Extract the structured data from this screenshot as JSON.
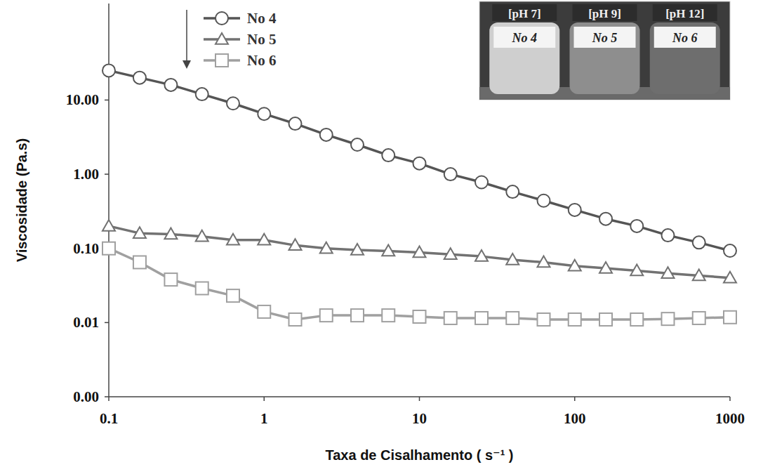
{
  "chart_data": {
    "type": "line",
    "x_label": "Taxa de Cisalhamento ( s⁻¹ )",
    "y_label": "Viscosidade (Pa.s)",
    "log": true,
    "grid": false,
    "legend": "top",
    "xlim": [
      0.1,
      1000
    ],
    "xticks": [
      0.1,
      1,
      10,
      100,
      1000
    ],
    "ylim": [
      0.001,
      200
    ],
    "yticks": [
      {
        "value": 0.001,
        "label": "0.00"
      },
      {
        "value": 0.01,
        "label": "0.01"
      },
      {
        "value": 0.1,
        "label": "0.10"
      },
      {
        "value": 1,
        "label": "1.00"
      },
      {
        "value": 10,
        "label": "10.00"
      }
    ],
    "x": [
      0.1,
      0.158,
      0.251,
      0.398,
      0.631,
      1,
      1.585,
      2.512,
      3.981,
      6.31,
      10,
      15.85,
      25.12,
      39.81,
      63.1,
      100,
      158.5,
      251.2,
      398.1,
      631,
      1000
    ],
    "series": [
      {
        "name": "No 4",
        "color": "#555555",
        "marker": "circle",
        "values": [
          25,
          20,
          16,
          12,
          9,
          6.5,
          4.8,
          3.4,
          2.5,
          1.8,
          1.4,
          1.0,
          0.78,
          0.58,
          0.44,
          0.33,
          0.25,
          0.2,
          0.15,
          0.12,
          0.093
        ]
      },
      {
        "name": "No 5",
        "color": "#727272",
        "marker": "triangle",
        "values": [
          0.2,
          0.16,
          0.155,
          0.145,
          0.13,
          0.13,
          0.11,
          0.1,
          0.095,
          0.092,
          0.088,
          0.083,
          0.078,
          0.07,
          0.065,
          0.058,
          0.054,
          0.05,
          0.046,
          0.043,
          0.04
        ]
      },
      {
        "name": "No 6",
        "color": "#a0a0a0",
        "marker": "square",
        "values": [
          0.1,
          0.065,
          0.038,
          0.029,
          0.023,
          0.014,
          0.011,
          0.0125,
          0.0125,
          0.0125,
          0.012,
          0.0115,
          0.0115,
          0.0115,
          0.011,
          0.011,
          0.011,
          0.011,
          0.0112,
          0.0115,
          0.0118
        ]
      }
    ],
    "inset": {
      "labels": [
        "[pH 7]",
        "[pH 9]",
        "[pH 12]"
      ],
      "bottle_labels": [
        "No 4",
        "No 5",
        "No 6"
      ]
    }
  }
}
